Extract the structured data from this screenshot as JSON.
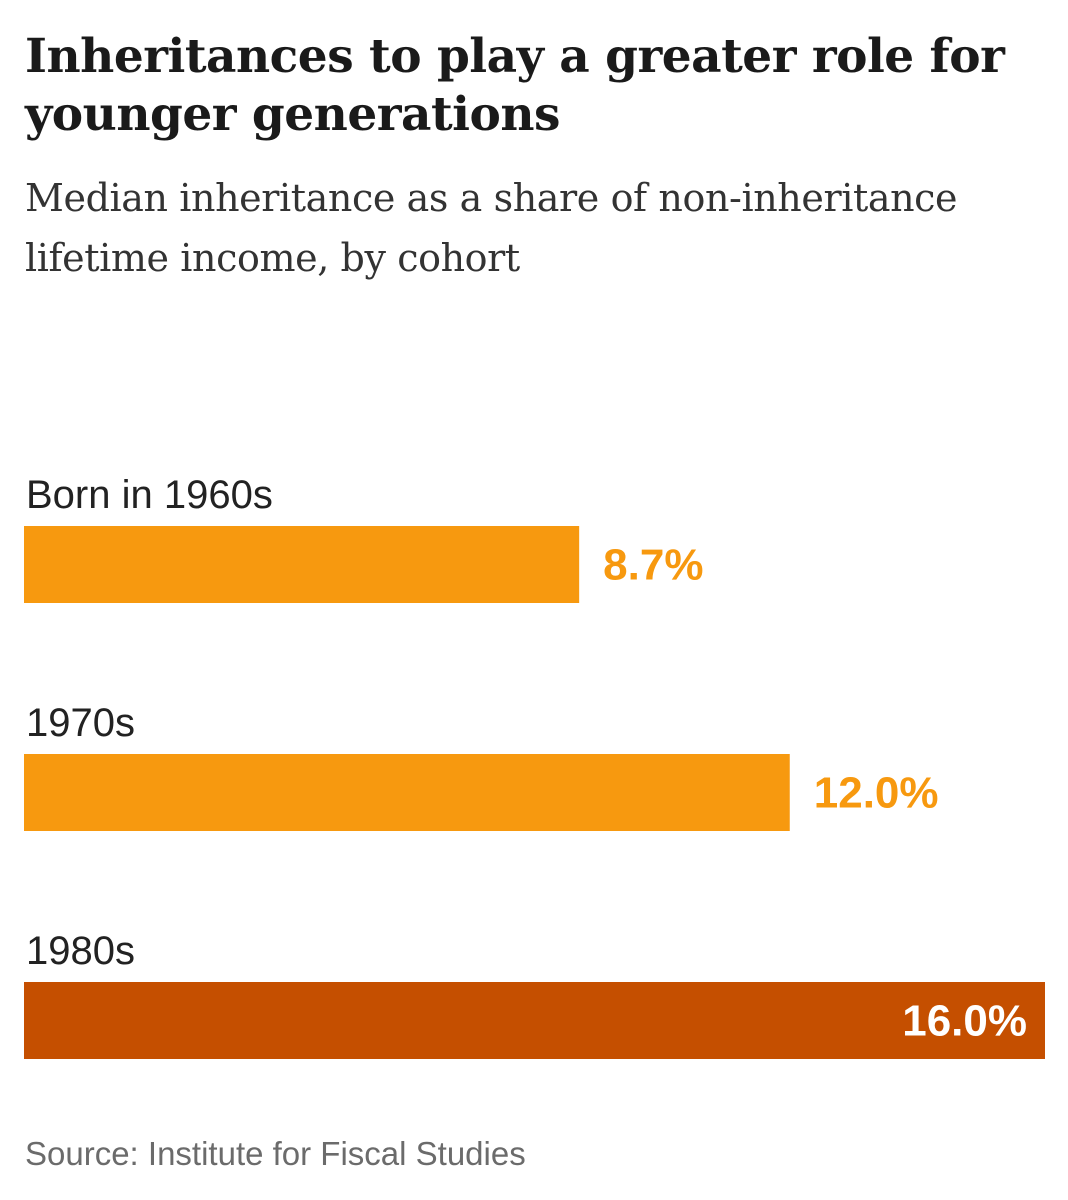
{
  "header": {
    "title": "Inheritances to play a greater role for younger generations",
    "subtitle": "Median inheritance as a share of non-inheritance lifetime income, by cohort"
  },
  "chart_data": {
    "type": "bar",
    "orientation": "horizontal",
    "categories": [
      "Born in 1960s",
      "1970s",
      "1980s"
    ],
    "values": [
      8.7,
      12.0,
      16.0
    ],
    "value_labels": [
      "8.7%",
      "12.0%",
      "16.0%"
    ],
    "xlim": [
      0,
      16.0
    ],
    "colors": [
      "#f7990f",
      "#f7990f",
      "#c54f00"
    ],
    "value_label_colors": [
      "#f7990f",
      "#f7990f",
      "#ffffff"
    ],
    "highlight_index": 2,
    "title": "Inheritances to play a greater role for younger generations",
    "xlabel": "",
    "ylabel": "",
    "grid": false,
    "legend": "none"
  },
  "footer": {
    "source": "Source: Institute for Fiscal Studies"
  }
}
